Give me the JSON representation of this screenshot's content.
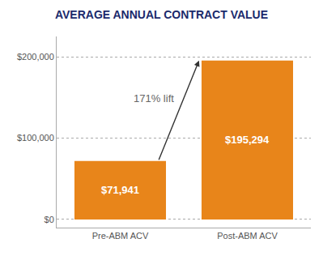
{
  "chart_data": {
    "type": "bar",
    "title": "AVERAGE ANNUAL CONTRACT VALUE",
    "categories": [
      "Pre-ABM ACV",
      "Post-ABM ACV"
    ],
    "values": [
      71941,
      195294
    ],
    "value_labels": [
      "$71,941",
      "$195,294"
    ],
    "data_labels": true,
    "color": "#E8851A",
    "ylim": [
      -10000,
      225000
    ],
    "yticks": [
      {
        "value": 0,
        "label": "$0"
      },
      {
        "value": 100000,
        "label": "$100,000"
      },
      {
        "value": 200000,
        "label": "$200,000"
      }
    ],
    "grid": true,
    "annotations": [
      "171% lift"
    ]
  }
}
